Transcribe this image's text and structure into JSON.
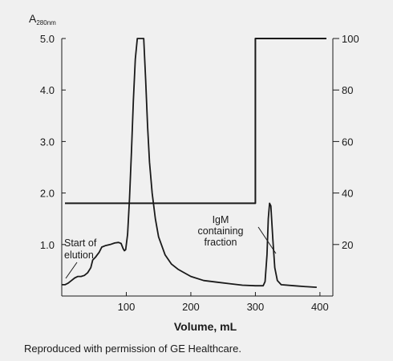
{
  "chart_data": {
    "type": "line",
    "title": "",
    "ylabel_left_main": "A",
    "ylabel_left_sub": "280nm",
    "xlabel": "Volume, mL",
    "xlim": [
      0,
      420
    ],
    "ylim_left": [
      0,
      5.0
    ],
    "ylim_right": [
      0,
      100
    ],
    "x_ticks": [
      100,
      200,
      300,
      400
    ],
    "y_left_ticks": [
      1.0,
      2.0,
      3.0,
      4.0,
      5.0
    ],
    "y_left_tick_labels": [
      "1.0",
      "2.0",
      "3.0",
      "4.0",
      "5.0"
    ],
    "y_right_ticks": [
      20,
      40,
      60,
      80,
      100
    ],
    "grid": false,
    "series": [
      {
        "axis": "left",
        "color": "#1a1a1a",
        "points": [
          [
            0,
            0.22
          ],
          [
            5,
            0.22
          ],
          [
            10,
            0.25
          ],
          [
            15,
            0.3
          ],
          [
            20,
            0.35
          ],
          [
            25,
            0.38
          ],
          [
            30,
            0.38
          ],
          [
            35,
            0.4
          ],
          [
            40,
            0.45
          ],
          [
            45,
            0.55
          ],
          [
            48,
            0.7
          ],
          [
            52,
            0.75
          ],
          [
            55,
            0.8
          ],
          [
            58,
            0.85
          ],
          [
            62,
            0.95
          ],
          [
            68,
            0.98
          ],
          [
            75,
            1.0
          ],
          [
            82,
            1.03
          ],
          [
            88,
            1.04
          ],
          [
            92,
            1.02
          ],
          [
            95,
            0.92
          ],
          [
            97,
            0.88
          ],
          [
            99,
            0.9
          ],
          [
            102,
            1.2
          ],
          [
            105,
            1.9
          ],
          [
            108,
            2.8
          ],
          [
            111,
            3.8
          ],
          [
            114,
            4.6
          ],
          [
            117,
            5.0
          ],
          [
            127,
            5.0
          ],
          [
            130,
            4.2
          ],
          [
            133,
            3.3
          ],
          [
            136,
            2.6
          ],
          [
            140,
            2.0
          ],
          [
            145,
            1.5
          ],
          [
            150,
            1.15
          ],
          [
            160,
            0.8
          ],
          [
            170,
            0.62
          ],
          [
            180,
            0.52
          ],
          [
            190,
            0.45
          ],
          [
            200,
            0.38
          ],
          [
            220,
            0.3
          ],
          [
            240,
            0.27
          ],
          [
            260,
            0.24
          ],
          [
            280,
            0.21
          ],
          [
            300,
            0.2
          ],
          [
            312,
            0.2
          ],
          [
            315,
            0.28
          ],
          [
            318,
            0.8
          ],
          [
            320,
            1.5
          ],
          [
            322,
            1.8
          ],
          [
            324,
            1.75
          ],
          [
            327,
            1.1
          ],
          [
            330,
            0.55
          ],
          [
            334,
            0.3
          ],
          [
            340,
            0.22
          ],
          [
            360,
            0.2
          ],
          [
            380,
            0.18
          ],
          [
            395,
            0.17
          ]
        ]
      },
      {
        "axis": "right",
        "color": "#1a1a1a",
        "points": [
          [
            5,
            36
          ],
          [
            300,
            36
          ],
          [
            300,
            100
          ],
          [
            410,
            100
          ]
        ]
      }
    ],
    "annotations": [
      {
        "lines": [
          "Start of",
          "elution"
        ],
        "x": 5,
        "y": 0.25,
        "arrow_to": [
          8,
          0.33
        ]
      },
      {
        "lines": [
          "IgM",
          "containing",
          "fraction"
        ],
        "x": 290,
        "y": 1.4,
        "arrow_to": [
          322,
          1.0
        ]
      }
    ]
  },
  "footer": {
    "credit": "Reproduced with permission of  GE Healthcare."
  }
}
